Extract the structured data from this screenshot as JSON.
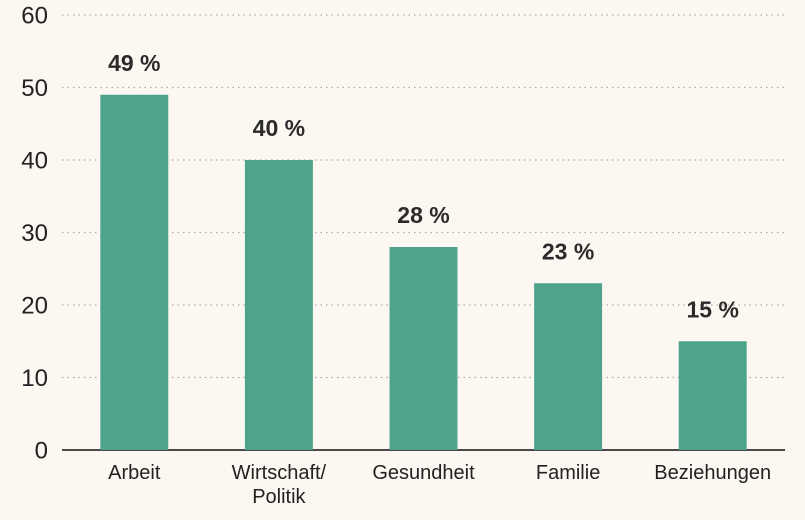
{
  "chart_data": {
    "type": "bar",
    "categories": [
      "Arbeit",
      "Wirtschaft/ Politik",
      "Gesundheit",
      "Familie",
      "Beziehungen"
    ],
    "values": [
      49,
      40,
      28,
      23,
      15
    ],
    "value_labels": [
      "49 %",
      "40 %",
      "28 %",
      "23 %",
      "15 %"
    ],
    "color": "#4ea38d",
    "ylim": [
      0,
      60
    ],
    "yticks": [
      0,
      10,
      20,
      30,
      40,
      50,
      60
    ],
    "grid": true
  }
}
